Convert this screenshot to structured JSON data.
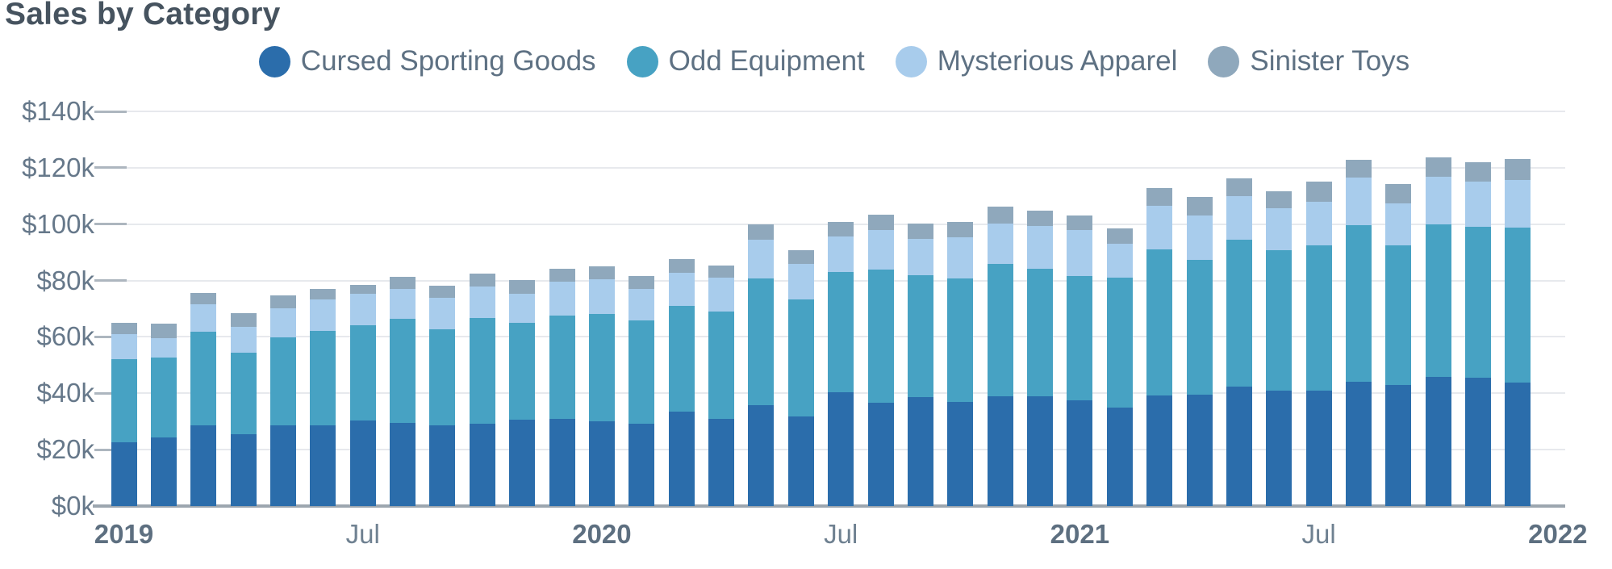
{
  "title": "Sales by Category",
  "legend": [
    {
      "label": "Cursed Sporting Goods",
      "color": "#2B6DAB"
    },
    {
      "label": "Odd Equipment",
      "color": "#47A2C3"
    },
    {
      "label": "Mysterious Apparel",
      "color": "#A8CCEC"
    },
    {
      "label": "Sinister Toys",
      "color": "#8FA8BC"
    }
  ],
  "chart_data": {
    "type": "bar",
    "stacked": true,
    "title": "Sales by Category",
    "units": "thousand dollars",
    "grid": true,
    "legend_position": "top-center",
    "x": [
      "2019-01",
      "2019-02",
      "2019-03",
      "2019-04",
      "2019-05",
      "2019-06",
      "2019-07",
      "2019-08",
      "2019-09",
      "2019-10",
      "2019-11",
      "2019-12",
      "2020-01",
      "2020-02",
      "2020-03",
      "2020-04",
      "2020-05",
      "2020-06",
      "2020-07",
      "2020-08",
      "2020-09",
      "2020-10",
      "2020-11",
      "2020-12",
      "2021-01",
      "2021-02",
      "2021-03",
      "2021-04",
      "2021-05",
      "2021-06",
      "2021-07",
      "2021-08",
      "2021-09",
      "2021-10",
      "2021-11",
      "2021-12"
    ],
    "series": [
      {
        "name": "Cursed Sporting Goods",
        "color": "#2B6DAB",
        "values": [
          22.5,
          24.3,
          28.7,
          25.5,
          28.5,
          28.7,
          30.3,
          29.6,
          28.5,
          29.3,
          30.6,
          31.0,
          30.0,
          29.2,
          33.5,
          30.8,
          35.7,
          31.8,
          40.4,
          36.7,
          38.6,
          36.9,
          38.9,
          39.0,
          37.4,
          35.0,
          39.2,
          39.4,
          42.4,
          40.8,
          40.8,
          44.0,
          43.0,
          45.7,
          45.5,
          43.8
        ]
      },
      {
        "name": "Odd Equipment",
        "color": "#47A2C3",
        "values": [
          29.7,
          28.4,
          33.0,
          28.9,
          31.2,
          33.5,
          33.7,
          36.7,
          34.2,
          37.4,
          34.4,
          36.7,
          38.2,
          36.7,
          37.4,
          38.1,
          45.1,
          41.4,
          42.7,
          47.1,
          43.2,
          43.9,
          46.9,
          45.1,
          44.3,
          45.9,
          51.8,
          47.9,
          52.2,
          50.0,
          51.6,
          55.6,
          49.6,
          54.1,
          53.5,
          54.9
        ]
      },
      {
        "name": "Mysterious Apparel",
        "color": "#A8CCEC",
        "values": [
          8.8,
          6.8,
          9.9,
          9.3,
          10.4,
          11.2,
          11.2,
          10.6,
          11.1,
          11.2,
          10.4,
          11.9,
          12.2,
          11.2,
          11.7,
          12.2,
          13.7,
          12.6,
          12.4,
          14.2,
          12.9,
          14.5,
          14.5,
          15.2,
          16.1,
          12.1,
          15.5,
          15.9,
          15.3,
          14.9,
          15.6,
          16.8,
          14.7,
          17.0,
          16.2,
          16.9
        ]
      },
      {
        "name": "Sinister Toys",
        "color": "#8FA8BC",
        "values": [
          3.9,
          5.2,
          4.0,
          4.8,
          4.5,
          3.5,
          3.2,
          4.5,
          4.4,
          4.5,
          4.7,
          4.5,
          4.5,
          4.5,
          5.0,
          4.3,
          5.3,
          4.9,
          5.4,
          5.4,
          5.6,
          5.6,
          5.9,
          5.6,
          5.4,
          5.6,
          6.4,
          6.5,
          6.2,
          6.0,
          7.2,
          6.5,
          7.0,
          7.0,
          6.7,
          7.4
        ]
      }
    ],
    "y_axis": {
      "min": 0,
      "max": 140,
      "tick_step": 20,
      "tick_labels": [
        "$0k",
        "$20k",
        "$40k",
        "$60k",
        "$80k",
        "$100k",
        "$120k",
        "$140k"
      ]
    },
    "x_axis": {
      "tick_labels": [
        {
          "label": "2019",
          "bold": true,
          "bar_index": 0
        },
        {
          "label": "Jul",
          "bold": false,
          "bar_index": 6
        },
        {
          "label": "2020",
          "bold": true,
          "bar_index": 12
        },
        {
          "label": "Jul",
          "bold": false,
          "bar_index": 18
        },
        {
          "label": "2021",
          "bold": true,
          "bar_index": 24
        },
        {
          "label": "Jul",
          "bold": false,
          "bar_index": 30
        },
        {
          "label": "2022",
          "bold": true,
          "bar_index": 36
        }
      ]
    }
  },
  "colors": {
    "background": "#FFFFFF",
    "title_text": "#46535F",
    "legend_text": "#5E7183",
    "y_label_text": "#66788A",
    "x_year_text": "#5D6F80",
    "x_month_text": "#6F8191",
    "gridline": "#E7E9ED",
    "axis_line": "#9CA6AF"
  }
}
